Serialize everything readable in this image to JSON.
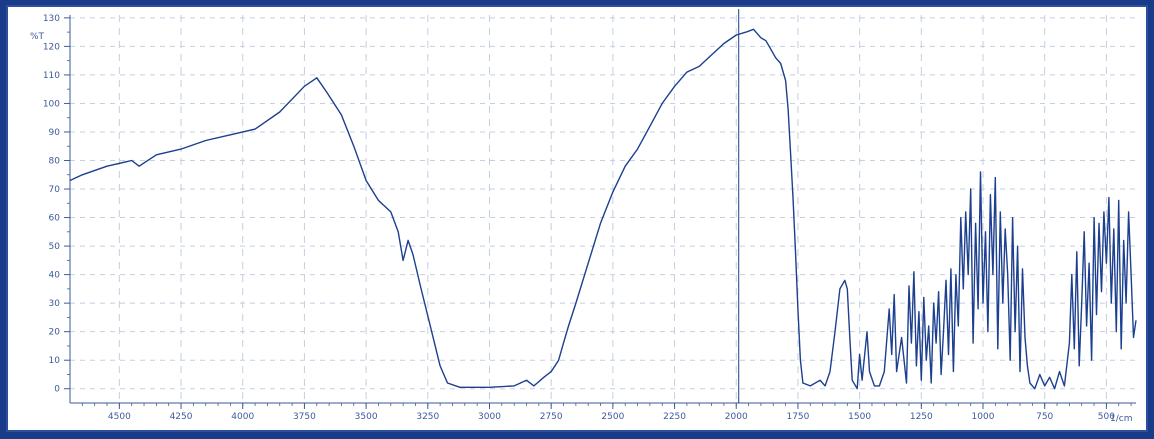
{
  "chart_data": {
    "type": "line",
    "title": "",
    "ylabel": "%T",
    "xlabel": "1/cm",
    "xlim": [
      4700,
      380
    ],
    "ylim": [
      -5,
      131
    ],
    "x_reversed": true,
    "grid": true,
    "colors": {
      "line": "#1c3f8f",
      "grid": "#c4cfe0",
      "axis": "#3d5a99",
      "cursor": "#1c3f8f"
    },
    "cursor_x": 1990,
    "x_ticks": [
      "4500",
      "4250",
      "4000",
      "3750",
      "3500",
      "3250",
      "3000",
      "2750",
      "2500",
      "2250",
      "2000",
      "1750",
      "1500",
      "1250",
      "1000",
      "750",
      "500"
    ],
    "y_ticks": [
      "0",
      "10",
      "20",
      "30",
      "40",
      "50",
      "60",
      "70",
      "80",
      "90",
      "100",
      "110",
      "120",
      "130"
    ],
    "series": [
      {
        "values": [
          [
            4700,
            73
          ],
          [
            4650,
            75
          ],
          [
            4550,
            78
          ],
          [
            4450,
            80
          ],
          [
            4420,
            78
          ],
          [
            4350,
            82
          ],
          [
            4250,
            84
          ],
          [
            4150,
            87
          ],
          [
            4050,
            89
          ],
          [
            3950,
            91
          ],
          [
            3850,
            97
          ],
          [
            3750,
            106
          ],
          [
            3700,
            109
          ],
          [
            3660,
            104
          ],
          [
            3600,
            96
          ],
          [
            3550,
            85
          ],
          [
            3500,
            73
          ],
          [
            3450,
            66
          ],
          [
            3400,
            62
          ],
          [
            3370,
            55
          ],
          [
            3350,
            45
          ],
          [
            3330,
            52
          ],
          [
            3310,
            47
          ],
          [
            3280,
            36
          ],
          [
            3240,
            22
          ],
          [
            3200,
            8
          ],
          [
            3170,
            2
          ],
          [
            3120,
            0.5
          ],
          [
            3000,
            0.5
          ],
          [
            2900,
            1
          ],
          [
            2850,
            3
          ],
          [
            2820,
            1
          ],
          [
            2780,
            4
          ],
          [
            2750,
            6
          ],
          [
            2720,
            10
          ],
          [
            2700,
            16
          ],
          [
            2680,
            22
          ],
          [
            2650,
            30
          ],
          [
            2600,
            44
          ],
          [
            2550,
            58
          ],
          [
            2500,
            69
          ],
          [
            2450,
            78
          ],
          [
            2400,
            84
          ],
          [
            2350,
            92
          ],
          [
            2300,
            100
          ],
          [
            2250,
            106
          ],
          [
            2200,
            111
          ],
          [
            2150,
            113
          ],
          [
            2100,
            117
          ],
          [
            2050,
            121
          ],
          [
            2000,
            124
          ],
          [
            1960,
            125
          ],
          [
            1930,
            126
          ],
          [
            1900,
            123
          ],
          [
            1880,
            122
          ],
          [
            1860,
            119
          ],
          [
            1840,
            116
          ],
          [
            1820,
            114
          ],
          [
            1800,
            108
          ],
          [
            1790,
            98
          ],
          [
            1780,
            83
          ],
          [
            1770,
            67
          ],
          [
            1760,
            48
          ],
          [
            1750,
            28
          ],
          [
            1740,
            10
          ],
          [
            1730,
            2
          ],
          [
            1700,
            1
          ],
          [
            1660,
            3
          ],
          [
            1640,
            1
          ],
          [
            1620,
            6
          ],
          [
            1600,
            20
          ],
          [
            1580,
            35
          ],
          [
            1560,
            38
          ],
          [
            1550,
            35
          ],
          [
            1540,
            18
          ],
          [
            1530,
            3
          ],
          [
            1510,
            0
          ],
          [
            1500,
            12
          ],
          [
            1490,
            3
          ],
          [
            1470,
            20
          ],
          [
            1460,
            6
          ],
          [
            1440,
            1
          ],
          [
            1420,
            1
          ],
          [
            1400,
            6
          ],
          [
            1380,
            28
          ],
          [
            1370,
            12
          ],
          [
            1360,
            33
          ],
          [
            1350,
            6
          ],
          [
            1330,
            18
          ],
          [
            1310,
            2
          ],
          [
            1300,
            36
          ],
          [
            1290,
            16
          ],
          [
            1280,
            41
          ],
          [
            1270,
            8
          ],
          [
            1260,
            27
          ],
          [
            1250,
            3
          ],
          [
            1240,
            32
          ],
          [
            1230,
            10
          ],
          [
            1220,
            22
          ],
          [
            1210,
            2
          ],
          [
            1200,
            30
          ],
          [
            1190,
            16
          ],
          [
            1180,
            34
          ],
          [
            1170,
            5
          ],
          [
            1160,
            20
          ],
          [
            1150,
            38
          ],
          [
            1140,
            12
          ],
          [
            1130,
            42
          ],
          [
            1120,
            6
          ],
          [
            1110,
            40
          ],
          [
            1100,
            22
          ],
          [
            1090,
            60
          ],
          [
            1080,
            35
          ],
          [
            1070,
            62
          ],
          [
            1060,
            40
          ],
          [
            1050,
            70
          ],
          [
            1040,
            16
          ],
          [
            1030,
            58
          ],
          [
            1020,
            28
          ],
          [
            1010,
            76
          ],
          [
            1000,
            30
          ],
          [
            990,
            55
          ],
          [
            980,
            20
          ],
          [
            970,
            68
          ],
          [
            960,
            40
          ],
          [
            950,
            74
          ],
          [
            940,
            14
          ],
          [
            930,
            62
          ],
          [
            920,
            30
          ],
          [
            910,
            56
          ],
          [
            900,
            40
          ],
          [
            890,
            10
          ],
          [
            880,
            60
          ],
          [
            870,
            20
          ],
          [
            860,
            50
          ],
          [
            850,
            6
          ],
          [
            840,
            42
          ],
          [
            830,
            18
          ],
          [
            820,
            8
          ],
          [
            810,
            2
          ],
          [
            790,
            0
          ],
          [
            770,
            5
          ],
          [
            750,
            1
          ],
          [
            730,
            4
          ],
          [
            710,
            0
          ],
          [
            690,
            6
          ],
          [
            670,
            1
          ],
          [
            650,
            16
          ],
          [
            640,
            40
          ],
          [
            630,
            14
          ],
          [
            620,
            48
          ],
          [
            610,
            8
          ],
          [
            600,
            30
          ],
          [
            590,
            55
          ],
          [
            580,
            22
          ],
          [
            570,
            44
          ],
          [
            560,
            10
          ],
          [
            550,
            60
          ],
          [
            540,
            26
          ],
          [
            530,
            58
          ],
          [
            520,
            34
          ],
          [
            510,
            62
          ],
          [
            500,
            44
          ],
          [
            490,
            67
          ],
          [
            480,
            30
          ],
          [
            470,
            56
          ],
          [
            460,
            20
          ],
          [
            450,
            66
          ],
          [
            440,
            14
          ],
          [
            430,
            52
          ],
          [
            420,
            30
          ],
          [
            410,
            62
          ],
          [
            400,
            40
          ],
          [
            390,
            18
          ],
          [
            380,
            24
          ]
        ]
      }
    ]
  }
}
